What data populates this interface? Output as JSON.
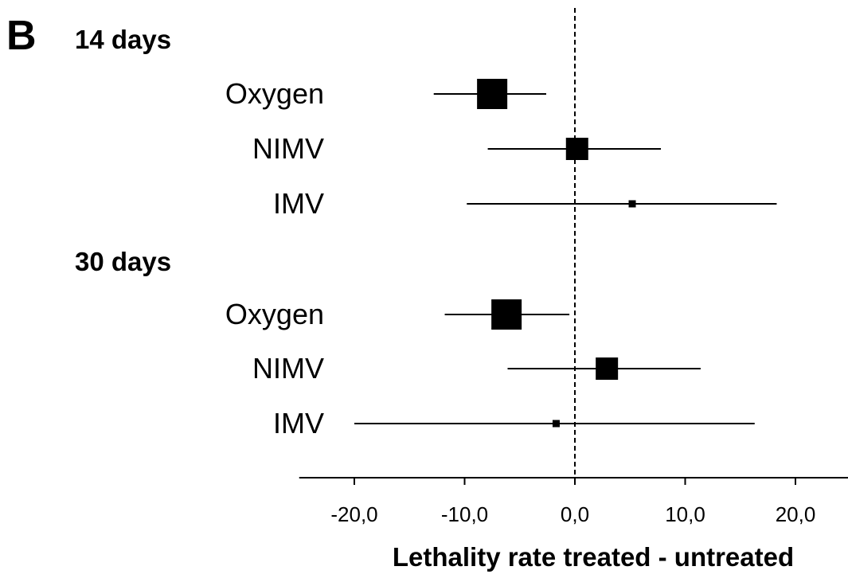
{
  "panel_label": "B",
  "chart_data": {
    "type": "forest",
    "xlabel": "Lethality rate treated - untreated",
    "xlim": [
      -25,
      25
    ],
    "xticks": [
      -20,
      -10,
      0,
      10,
      20
    ],
    "xtick_labels": [
      "-20,0",
      "-10,0",
      "0,0",
      "10,0",
      "20,0"
    ],
    "reference_line": 0,
    "groups": [
      {
        "label": "14 days",
        "rows": [
          {
            "label": "Oxygen",
            "estimate": -7.5,
            "ci_low": -12.8,
            "ci_high": -2.6,
            "weight": "large"
          },
          {
            "label": "NIMV",
            "estimate": 0.2,
            "ci_low": -7.9,
            "ci_high": 7.8,
            "weight": "medium"
          },
          {
            "label": "IMV",
            "estimate": 5.2,
            "ci_low": -9.8,
            "ci_high": 18.3,
            "weight": "small"
          }
        ]
      },
      {
        "label": "30 days",
        "rows": [
          {
            "label": "Oxygen",
            "estimate": -6.2,
            "ci_low": -11.8,
            "ci_high": -0.5,
            "weight": "large"
          },
          {
            "label": "NIMV",
            "estimate": 2.9,
            "ci_low": -6.1,
            "ci_high": 11.4,
            "weight": "medium"
          },
          {
            "label": "IMV",
            "estimate": -1.7,
            "ci_low": -20.0,
            "ci_high": 16.3,
            "weight": "small"
          }
        ]
      }
    ]
  }
}
